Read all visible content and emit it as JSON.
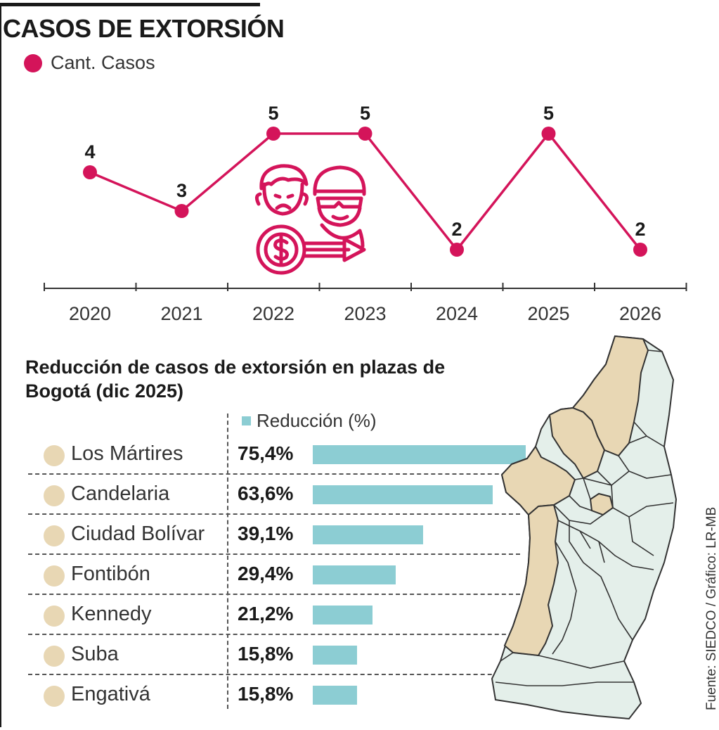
{
  "title": "CASOS DE EXTORSIÓN",
  "legend_line": "Cant. Casos",
  "subtitle": "Reducción de casos de extorsión en plazas de Bogotá (dic 2025)",
  "legend_bar": "Reducción (%)",
  "source": "Fuente: SIEDCO / Gráfico: LR-MB",
  "colors": {
    "line": "#d4145a",
    "bar": "#8ccdd3",
    "bubble": "#e8d7b4",
    "map_highlight": "#e8d7b4",
    "map_base": "#e4efea"
  },
  "icon": "extortion-icon",
  "chart_data": [
    {
      "type": "line",
      "title": "CASOS DE EXTORSIÓN",
      "series": [
        {
          "name": "Cant. Casos",
          "values": [
            4,
            3,
            5,
            5,
            2,
            5,
            2
          ]
        }
      ],
      "categories": [
        "2020",
        "2021",
        "2022",
        "2023",
        "2024",
        "2025",
        "2026"
      ],
      "data_labels": [
        "4",
        "3",
        "5",
        "5",
        "2",
        "5",
        "2"
      ],
      "ylim": [
        1,
        6
      ]
    },
    {
      "type": "bar",
      "title": "Reducción de casos de extorsión en plazas de Bogotá (dic 2025)",
      "categories": [
        "Los Mártires",
        "Candelaria",
        "Ciudad Bolívar",
        "Fontibón",
        "Kennedy",
        "Suba",
        "Engativá"
      ],
      "series": [
        {
          "name": "Reducción (%)",
          "values": [
            75.4,
            63.6,
            39.1,
            29.4,
            21.2,
            15.8,
            15.8
          ]
        }
      ],
      "value_labels": [
        "75,4%",
        "63,6%",
        "39,1%",
        "29,4%",
        "21,2%",
        "15,8%",
        "15,8%"
      ],
      "xlim": [
        0,
        75.4
      ]
    }
  ]
}
